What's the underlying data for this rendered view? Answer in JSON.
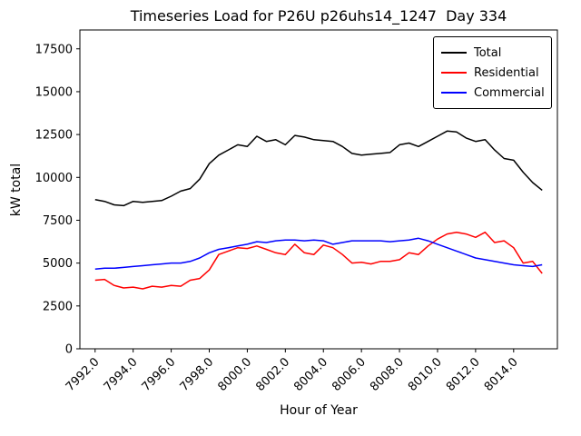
{
  "chart_data": {
    "type": "line",
    "title": "Timeseries Load for P26U p26uhs14_1247  Day 334",
    "xlabel": "Hour of Year",
    "ylabel": "kW total",
    "xlim": [
      7991.2,
      8016.3
    ],
    "ylim": [
      0,
      18600
    ],
    "x_ticks": [
      7992,
      7994,
      7996,
      7998,
      8000,
      8002,
      8004,
      8006,
      8008,
      8010,
      8012,
      8014
    ],
    "x_tick_labels": [
      "7992.0",
      "7994.0",
      "7996.0",
      "7998.0",
      "8000.0",
      "8002.0",
      "8004.0",
      "8006.0",
      "8008.0",
      "8010.0",
      "8012.0",
      "8014.0"
    ],
    "y_ticks": [
      0,
      2500,
      5000,
      7500,
      10000,
      12500,
      15000,
      17500
    ],
    "y_tick_labels": [
      "0",
      "2500",
      "5000",
      "7500",
      "10000",
      "12500",
      "15000",
      "17500"
    ],
    "grid": false,
    "legend_position": "upper right",
    "x": [
      7992.0,
      7992.5,
      7993.0,
      7993.5,
      7994.0,
      7994.5,
      7995.0,
      7995.5,
      7996.0,
      7996.5,
      7997.0,
      7997.5,
      7998.0,
      7998.5,
      7999.0,
      7999.5,
      8000.0,
      8000.5,
      8001.0,
      8001.5,
      8002.0,
      8002.5,
      8003.0,
      8003.5,
      8004.0,
      8004.5,
      8005.0,
      8005.5,
      8006.0,
      8006.5,
      8007.0,
      8007.5,
      8008.0,
      8008.5,
      8009.0,
      8009.5,
      8010.0,
      8010.5,
      8011.0,
      8011.5,
      8012.0,
      8012.5,
      8013.0,
      8013.5,
      8014.0,
      8014.5,
      8015.0,
      8015.5
    ],
    "series": [
      {
        "name": "Total",
        "color": "#000000",
        "values": [
          8700,
          8600,
          8400,
          8350,
          8600,
          8550,
          8600,
          8650,
          8900,
          9200,
          9350,
          9900,
          10800,
          11300,
          11600,
          11900,
          11800,
          12400,
          12100,
          12200,
          11900,
          12450,
          12350,
          12200,
          12150,
          12100,
          11800,
          11400,
          11300,
          11350,
          11400,
          11450,
          11900,
          12000,
          11800,
          12100,
          12400,
          12700,
          12650,
          12300,
          12100,
          12200,
          11600,
          11100,
          11000,
          10300,
          9700,
          9250
        ]
      },
      {
        "name": "Residential",
        "color": "#ff0000",
        "values": [
          4000,
          4050,
          3700,
          3550,
          3600,
          3500,
          3650,
          3600,
          3700,
          3650,
          4000,
          4100,
          4600,
          5500,
          5700,
          5900,
          5850,
          6000,
          5800,
          5600,
          5500,
          6100,
          5600,
          5500,
          6050,
          5900,
          5500,
          5000,
          5050,
          4950,
          5100,
          5100,
          5200,
          5600,
          5500,
          6000,
          6400,
          6700,
          6800,
          6700,
          6500,
          6800,
          6200,
          6300,
          5900,
          5000,
          5100,
          4400
        ]
      },
      {
        "name": "Commercial",
        "color": "#0000ff",
        "values": [
          4650,
          4700,
          4700,
          4750,
          4800,
          4850,
          4900,
          4950,
          5000,
          5000,
          5100,
          5300,
          5600,
          5800,
          5900,
          6000,
          6100,
          6250,
          6200,
          6300,
          6350,
          6350,
          6300,
          6350,
          6300,
          6100,
          6200,
          6300,
          6300,
          6300,
          6300,
          6250,
          6300,
          6350,
          6450,
          6300,
          6100,
          5900,
          5700,
          5500,
          5300,
          5200,
          5100,
          5000,
          4900,
          4850,
          4800,
          4900
        ]
      }
    ]
  }
}
